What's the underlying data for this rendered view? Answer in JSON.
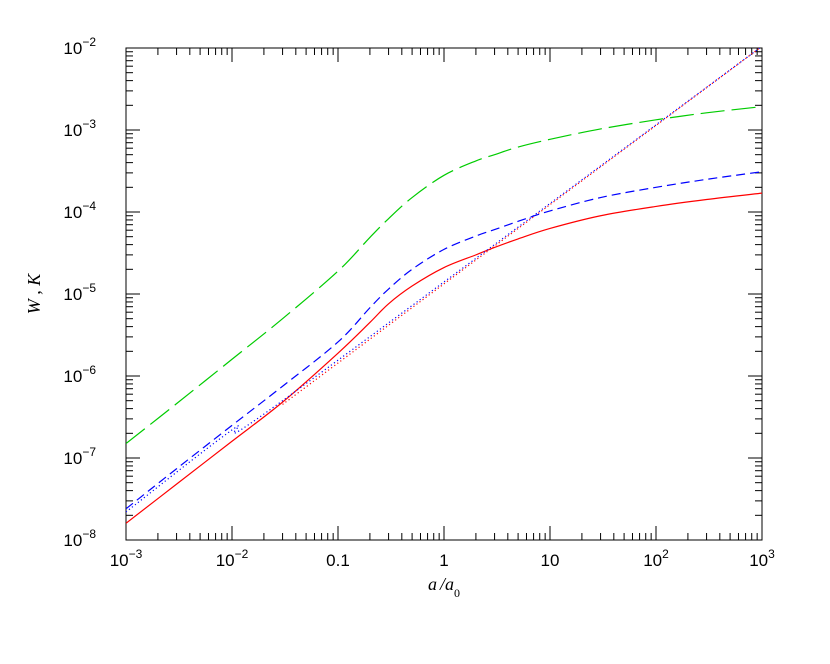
{
  "chart_data": {
    "type": "line",
    "xlabel": "a/a0",
    "ylabel": "W , K",
    "xscale": "log",
    "yscale": "log",
    "xlim": [
      0.001,
      1000
    ],
    "ylim": [
      1e-08,
      0.01
    ],
    "grid": false,
    "x_tick_labels": [
      {
        "value": 0.001,
        "mantissa": "10",
        "exp": "−3"
      },
      {
        "value": 0.01,
        "mantissa": "10",
        "exp": "−2"
      },
      {
        "value": 0.1,
        "mantissa": "0.1",
        "exp": ""
      },
      {
        "value": 1,
        "mantissa": "1",
        "exp": ""
      },
      {
        "value": 10,
        "mantissa": "10",
        "exp": ""
      },
      {
        "value": 100,
        "mantissa": "10",
        "exp": "2"
      },
      {
        "value": 1000,
        "mantissa": "10",
        "exp": "3"
      }
    ],
    "y_tick_labels": [
      {
        "value": 1e-08,
        "mantissa": "10",
        "exp": "−8"
      },
      {
        "value": 1e-07,
        "mantissa": "10",
        "exp": "−7"
      },
      {
        "value": 1e-06,
        "mantissa": "10",
        "exp": "−6"
      },
      {
        "value": 1e-05,
        "mantissa": "10",
        "exp": "−5"
      },
      {
        "value": 0.0001,
        "mantissa": "10",
        "exp": "−4"
      },
      {
        "value": 0.001,
        "mantissa": "10",
        "exp": "−3"
      },
      {
        "value": 0.01,
        "mantissa": "10",
        "exp": "−2"
      }
    ],
    "series": [
      {
        "color": "#ff0000",
        "dash": "solid",
        "x": [
          0.001,
          0.003,
          0.01,
          0.03,
          0.1,
          0.2,
          0.3,
          0.5,
          1,
          2,
          3,
          5,
          10,
          30,
          100,
          300,
          1000
        ],
        "y": [
          1.6e-08,
          4.8e-08,
          1.6e-07,
          4.8e-07,
          1.9e-06,
          4.5e-06,
          7.6e-06,
          1.25e-05,
          2.1e-05,
          3e-05,
          3.7e-05,
          4.7e-05,
          6.3e-05,
          9e-05,
          0.000117,
          0.000142,
          0.00017
        ]
      },
      {
        "color": "#ff0000",
        "dash": "dotted",
        "x": [
          0.03,
          1000
        ],
        "y": [
          4.5e-07,
          0.0105
        ]
      },
      {
        "color": "#0000ff",
        "dash": "dashed",
        "x": [
          0.001,
          0.003,
          0.01,
          0.03,
          0.1,
          0.2,
          0.3,
          0.5,
          1,
          2,
          3,
          5,
          10,
          30,
          100,
          300,
          1000
        ],
        "y": [
          2.4e-08,
          7.4e-08,
          2.5e-07,
          7.5e-07,
          2.6e-06,
          6.8e-06,
          1.15e-05,
          2e-05,
          3.5e-05,
          5.1e-05,
          6.1e-05,
          7.7e-05,
          0.000103,
          0.00015,
          0.0002,
          0.00025,
          0.00031
        ]
      },
      {
        "color": "#0000ff",
        "dash": "dotted",
        "x": [
          0.001,
          0.01,
          0.03,
          1000
        ],
        "y": [
          2.2e-08,
          2.2e-07,
          5e-07,
          0.0105
        ]
      },
      {
        "color": "#00cc00",
        "dash": "longdash",
        "x": [
          0.001,
          0.003,
          0.01,
          0.03,
          0.1,
          0.2,
          0.3,
          0.5,
          1,
          2,
          3,
          5,
          10,
          30,
          100,
          300,
          1000
        ],
        "y": [
          1.5e-07,
          4.6e-07,
          1.6e-06,
          5e-06,
          1.9e-05,
          4.9e-05,
          8.3e-05,
          0.00015,
          0.00028,
          0.00042,
          0.0005,
          0.00062,
          0.00077,
          0.00103,
          0.00133,
          0.00162,
          0.00193
        ]
      }
    ]
  }
}
